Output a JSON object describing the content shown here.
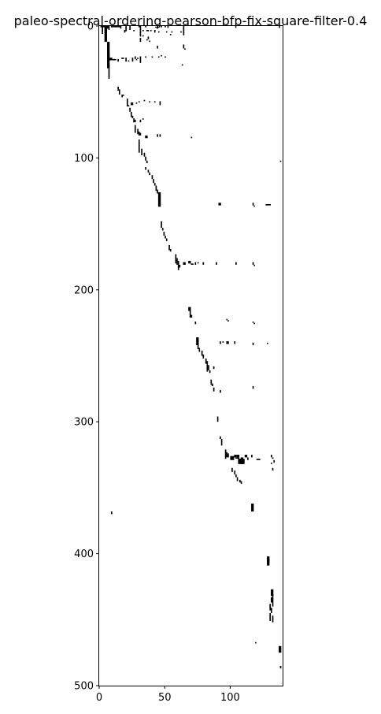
{
  "chart_data": {
    "type": "heatmap",
    "title": "paleo-spectral-ordering-pearson-bfp-fix-square-filter-0.4",
    "xlabel": "",
    "ylabel": "",
    "xlim": [
      0,
      140
    ],
    "ylim": [
      500,
      0
    ],
    "xticks": [
      0,
      50,
      100
    ],
    "yticks": [
      0,
      100,
      200,
      300,
      400,
      500
    ],
    "grid": false,
    "legend": "none",
    "colors": {
      "filled": "#000000",
      "empty": "#ffffff"
    },
    "filled_cells": [
      [
        1,
        0,
        4,
        1
      ],
      [
        2,
        0,
        1,
        6
      ],
      [
        4,
        0,
        2,
        12
      ],
      [
        5,
        0,
        2,
        2
      ],
      [
        7,
        0,
        1,
        3
      ],
      [
        9,
        0,
        2,
        1
      ],
      [
        11,
        0,
        3,
        1
      ],
      [
        14,
        0,
        2,
        1
      ],
      [
        16,
        0,
        1,
        2
      ],
      [
        20,
        0,
        1,
        4
      ],
      [
        23,
        0,
        1,
        3
      ],
      [
        30,
        0,
        1,
        1
      ],
      [
        31,
        0,
        1,
        8
      ],
      [
        35,
        0,
        1,
        1
      ],
      [
        44,
        0,
        1,
        2
      ],
      [
        47,
        0,
        1,
        1
      ],
      [
        50,
        0,
        1,
        1
      ],
      [
        52,
        0,
        1,
        1
      ],
      [
        64,
        0,
        1,
        7
      ],
      [
        19,
        3,
        1,
        2
      ],
      [
        26,
        3,
        1,
        1
      ],
      [
        33,
        3,
        1,
        1
      ],
      [
        36,
        3,
        2,
        1
      ],
      [
        39,
        3,
        1,
        1
      ],
      [
        42,
        3,
        1,
        2
      ],
      [
        45,
        4,
        1,
        1
      ],
      [
        51,
        4,
        1,
        1
      ],
      [
        55,
        4,
        1,
        1
      ],
      [
        62,
        4,
        1,
        1
      ],
      [
        33,
        7,
        1,
        1
      ],
      [
        37,
        8,
        1,
        2
      ],
      [
        31,
        9,
        1,
        3
      ],
      [
        36,
        10,
        1,
        1
      ],
      [
        38,
        11,
        1,
        1
      ],
      [
        54,
        6,
        1,
        1
      ],
      [
        64,
        14,
        1,
        3
      ],
      [
        65,
        17,
        1,
        1
      ],
      [
        44,
        15,
        1,
        2
      ],
      [
        6,
        12,
        2,
        20
      ],
      [
        7,
        20,
        1,
        7
      ],
      [
        8,
        24,
        2,
        2
      ],
      [
        10,
        25,
        3,
        1
      ],
      [
        14,
        25,
        1,
        2
      ],
      [
        17,
        24,
        2,
        1
      ],
      [
        20,
        24,
        1,
        3
      ],
      [
        22,
        26,
        1,
        1
      ],
      [
        25,
        24,
        1,
        3
      ],
      [
        27,
        23,
        1,
        2
      ],
      [
        28,
        25,
        1,
        1
      ],
      [
        29,
        24,
        1,
        1
      ],
      [
        31,
        23,
        1,
        5
      ],
      [
        35,
        23,
        1,
        1
      ],
      [
        40,
        23,
        1,
        1
      ],
      [
        45,
        23,
        1,
        1
      ],
      [
        47,
        22,
        1,
        1
      ],
      [
        50,
        23,
        1,
        1
      ],
      [
        63,
        29,
        1,
        1
      ],
      [
        7,
        29,
        1,
        11
      ],
      [
        14,
        46,
        1,
        3
      ],
      [
        15,
        48,
        1,
        4
      ],
      [
        17,
        52,
        1,
        2
      ],
      [
        18,
        52,
        1,
        1
      ],
      [
        21,
        55,
        1,
        6
      ],
      [
        22,
        60,
        1,
        1
      ],
      [
        23,
        62,
        1,
        3
      ],
      [
        24,
        58,
        1,
        2
      ],
      [
        25,
        58,
        1,
        2
      ],
      [
        28,
        58,
        1,
        1
      ],
      [
        30,
        57,
        1,
        1
      ],
      [
        34,
        56,
        1,
        1
      ],
      [
        38,
        57,
        1,
        1
      ],
      [
        42,
        57,
        1,
        1
      ],
      [
        46,
        57,
        1,
        3
      ],
      [
        24,
        65,
        1,
        4
      ],
      [
        25,
        68,
        1,
        2
      ],
      [
        26,
        70,
        1,
        3
      ],
      [
        27,
        71,
        1,
        2
      ],
      [
        31,
        71,
        1,
        2
      ],
      [
        33,
        70,
        1,
        1
      ],
      [
        27,
        75,
        1,
        6
      ],
      [
        29,
        78,
        1,
        4
      ],
      [
        30,
        80,
        1,
        3
      ],
      [
        31,
        81,
        1,
        2
      ],
      [
        44,
        82,
        1,
        2
      ],
      [
        46,
        82,
        1,
        2
      ],
      [
        35,
        83,
        2,
        2
      ],
      [
        70,
        84,
        1,
        1
      ],
      [
        30,
        86,
        1,
        10
      ],
      [
        32,
        93,
        1,
        5
      ],
      [
        34,
        96,
        1,
        3
      ],
      [
        35,
        99,
        1,
        3
      ],
      [
        36,
        102,
        1,
        2
      ],
      [
        138,
        102,
        1,
        1
      ],
      [
        35,
        107,
        1,
        2
      ],
      [
        37,
        109,
        1,
        2
      ],
      [
        38,
        111,
        1,
        2
      ],
      [
        40,
        113,
        1,
        3
      ],
      [
        41,
        116,
        1,
        3
      ],
      [
        42,
        119,
        1,
        2
      ],
      [
        43,
        121,
        1,
        4
      ],
      [
        44,
        124,
        1,
        3
      ],
      [
        45,
        126,
        2,
        11
      ],
      [
        91,
        134,
        2,
        2
      ],
      [
        117,
        134,
        1,
        2
      ],
      [
        118,
        136,
        1,
        1
      ],
      [
        127,
        135,
        4,
        1
      ],
      [
        47,
        148,
        1,
        5
      ],
      [
        48,
        153,
        1,
        2
      ],
      [
        49,
        156,
        1,
        3
      ],
      [
        50,
        159,
        1,
        2
      ],
      [
        51,
        161,
        1,
        2
      ],
      [
        53,
        166,
        1,
        4
      ],
      [
        54,
        169,
        1,
        2
      ],
      [
        58,
        173,
        1,
        7
      ],
      [
        59,
        176,
        1,
        5
      ],
      [
        60,
        178,
        1,
        7
      ],
      [
        61,
        181,
        1,
        2
      ],
      [
        64,
        179,
        2,
        2
      ],
      [
        68,
        178,
        2,
        2
      ],
      [
        70,
        180,
        2,
        1
      ],
      [
        73,
        179,
        1,
        2
      ],
      [
        75,
        179,
        1,
        1
      ],
      [
        79,
        179,
        1,
        2
      ],
      [
        89,
        179,
        1,
        2
      ],
      [
        104,
        179,
        1,
        2
      ],
      [
        117,
        179,
        1,
        2
      ],
      [
        118,
        181,
        1,
        1
      ],
      [
        68,
        213,
        2,
        3
      ],
      [
        69,
        215,
        1,
        6
      ],
      [
        70,
        219,
        1,
        2
      ],
      [
        73,
        224,
        1,
        2
      ],
      [
        97,
        222,
        1,
        1
      ],
      [
        98,
        223,
        1,
        1
      ],
      [
        117,
        224,
        1,
        1
      ],
      [
        118,
        225,
        1,
        1
      ],
      [
        74,
        236,
        2,
        6
      ],
      [
        75,
        242,
        1,
        3
      ],
      [
        76,
        244,
        1,
        3
      ],
      [
        78,
        246,
        1,
        4
      ],
      [
        79,
        249,
        1,
        3
      ],
      [
        81,
        252,
        1,
        4
      ],
      [
        82,
        254,
        1,
        8
      ],
      [
        83,
        257,
        1,
        4
      ],
      [
        84,
        261,
        1,
        2
      ],
      [
        87,
        258,
        1,
        2
      ],
      [
        92,
        239,
        1,
        2
      ],
      [
        94,
        239,
        1,
        1
      ],
      [
        97,
        239,
        2,
        2
      ],
      [
        103,
        239,
        1,
        2
      ],
      [
        117,
        240,
        1,
        2
      ],
      [
        128,
        240,
        1,
        1
      ],
      [
        85,
        268,
        1,
        4
      ],
      [
        86,
        271,
        1,
        2
      ],
      [
        87,
        274,
        1,
        3
      ],
      [
        92,
        276,
        1,
        2
      ],
      [
        117,
        273,
        1,
        2
      ],
      [
        90,
        296,
        1,
        4
      ],
      [
        92,
        311,
        1,
        2
      ],
      [
        93,
        313,
        1,
        5
      ],
      [
        96,
        321,
        1,
        7
      ],
      [
        97,
        323,
        1,
        4
      ],
      [
        98,
        324,
        1,
        3
      ],
      [
        100,
        326,
        3,
        3
      ],
      [
        103,
        325,
        2,
        2
      ],
      [
        104,
        327,
        3,
        1
      ],
      [
        105,
        325,
        2,
        2
      ],
      [
        106,
        328,
        5,
        4
      ],
      [
        107,
        330,
        3,
        2
      ],
      [
        108,
        327,
        2,
        5
      ],
      [
        111,
        325,
        2,
        2
      ],
      [
        113,
        327,
        1,
        2
      ],
      [
        116,
        325,
        1,
        2
      ],
      [
        120,
        328,
        3,
        1
      ],
      [
        131,
        325,
        1,
        2
      ],
      [
        132,
        327,
        1,
        1
      ],
      [
        133,
        329,
        1,
        2
      ],
      [
        131,
        331,
        1,
        1
      ],
      [
        132,
        335,
        1,
        2
      ],
      [
        101,
        335,
        1,
        3
      ],
      [
        103,
        337,
        1,
        3
      ],
      [
        104,
        340,
        1,
        2
      ],
      [
        105,
        342,
        1,
        3
      ],
      [
        107,
        344,
        1,
        2
      ],
      [
        108,
        345,
        1,
        2
      ],
      [
        9,
        368,
        1,
        2
      ],
      [
        116,
        362,
        2,
        6
      ],
      [
        128,
        402,
        2,
        7
      ],
      [
        129,
        404,
        1,
        3
      ],
      [
        131,
        427,
        2,
        5
      ],
      [
        132,
        431,
        1,
        2
      ],
      [
        131,
        433,
        2,
        4
      ],
      [
        132,
        437,
        1,
        3
      ],
      [
        130,
        438,
        1,
        5
      ],
      [
        131,
        441,
        1,
        4
      ],
      [
        130,
        445,
        1,
        6
      ],
      [
        132,
        447,
        1,
        5
      ],
      [
        119,
        467,
        1,
        1
      ],
      [
        137,
        470,
        2,
        5
      ],
      [
        138,
        485,
        1,
        2
      ]
    ]
  }
}
